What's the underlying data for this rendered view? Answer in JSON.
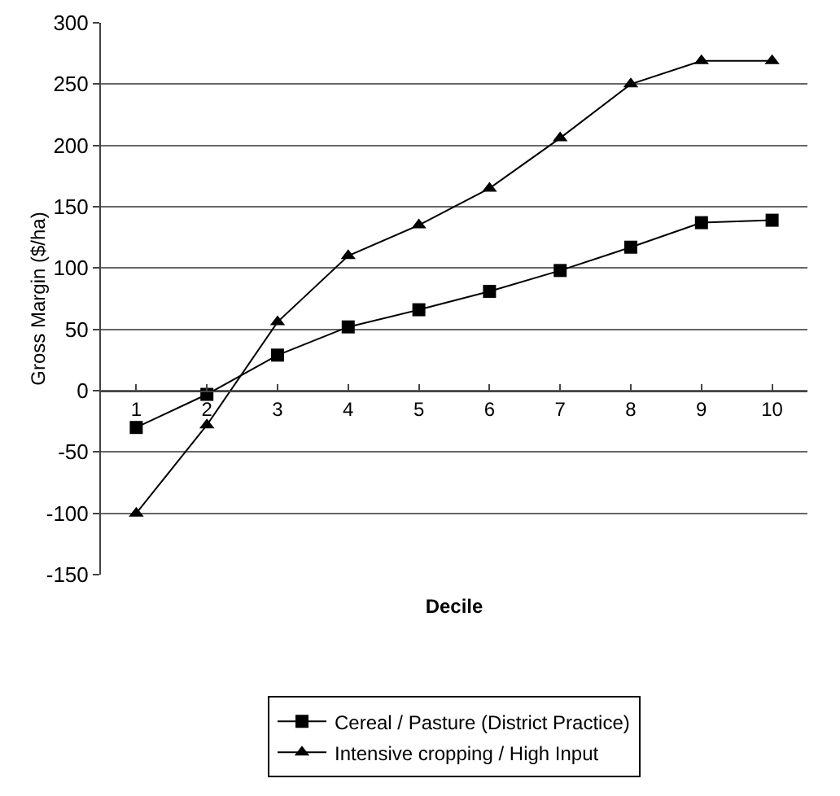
{
  "chart_data": {
    "type": "line",
    "xlabel": "Decile",
    "ylabel": "Gross Margin ($/ha)",
    "categories": [
      "1",
      "2",
      "3",
      "4",
      "5",
      "6",
      "7",
      "8",
      "9",
      "10"
    ],
    "series": [
      {
        "name": "Cereal / Pasture (District Practice)",
        "color": "#000000",
        "marker": "square",
        "values": [
          -30,
          -3,
          29,
          52,
          66,
          81,
          98,
          117,
          137,
          139
        ]
      },
      {
        "name": "Intensive cropping / High Input",
        "color": "#000000",
        "marker": "triangle",
        "values": [
          -100,
          -28,
          56,
          110,
          135,
          165,
          206,
          250,
          269,
          269
        ]
      }
    ],
    "ylim": [
      -150,
      300
    ],
    "yticks": [
      -150,
      -100,
      -50,
      0,
      50,
      100,
      150,
      200,
      250,
      300
    ],
    "grid": "y",
    "legend": "bottom"
  }
}
